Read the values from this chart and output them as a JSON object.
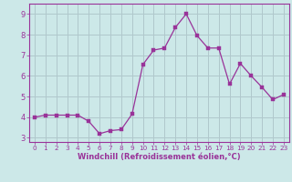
{
  "x": [
    0,
    1,
    2,
    3,
    4,
    5,
    6,
    7,
    8,
    9,
    10,
    11,
    12,
    13,
    14,
    15,
    16,
    17,
    18,
    19,
    20,
    21,
    22,
    23
  ],
  "y": [
    4.0,
    4.1,
    4.1,
    4.1,
    4.1,
    3.8,
    3.2,
    3.35,
    3.4,
    4.15,
    6.55,
    7.25,
    7.35,
    8.35,
    9.0,
    7.95,
    7.35,
    7.35,
    5.6,
    6.6,
    6.0,
    5.45,
    4.85,
    5.1
  ],
  "line_color": "#993399",
  "marker": "s",
  "marker_size": 2.5,
  "bg_color": "#cce8e8",
  "grid_color": "#b0c8cc",
  "spine_color": "#993399",
  "xlabel": "Windchill (Refroidissement éolien,°C)",
  "xlabel_color": "#993399",
  "tick_color": "#993399",
  "ylim": [
    2.8,
    9.5
  ],
  "xlim": [
    -0.5,
    23.5
  ],
  "yticks": [
    3,
    4,
    5,
    6,
    7,
    8,
    9
  ],
  "xticks": [
    0,
    1,
    2,
    3,
    4,
    5,
    6,
    7,
    8,
    9,
    10,
    11,
    12,
    13,
    14,
    15,
    16,
    17,
    18,
    19,
    20,
    21,
    22,
    23
  ],
  "xtick_labels": [
    "0",
    "1",
    "2",
    "3",
    "4",
    "5",
    "6",
    "7",
    "8",
    "9",
    "10",
    "11",
    "12",
    "13",
    "14",
    "15",
    "16",
    "17",
    "18",
    "19",
    "20",
    "21",
    "22",
    "23"
  ],
  "figsize": [
    3.2,
    2.0
  ],
  "dpi": 100
}
